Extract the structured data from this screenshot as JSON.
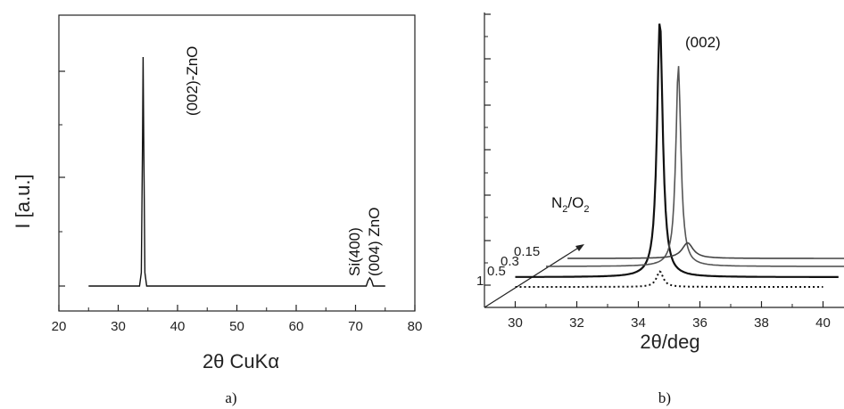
{
  "chart_data": [
    {
      "type": "line",
      "panel_label": "a)",
      "xlabel": "2θ CuKα",
      "ylabel": "I [a.u.]",
      "xlim": [
        20,
        80
      ],
      "xticks": [
        20,
        30,
        40,
        50,
        60,
        70,
        80
      ],
      "ylim": [
        0,
        1
      ],
      "grid": false,
      "annotations": [
        {
          "text": "(002)-ZnO",
          "x": 43,
          "y": 1.06
        },
        {
          "text": "Si(400)",
          "x": 70.5,
          "y": 0.24
        },
        {
          "text": "(004) ZnO",
          "x": 72.8,
          "y": 0.24
        }
      ],
      "series": [
        {
          "x": [
            25,
            33.6,
            33.9,
            34.1,
            34.2,
            34.3,
            34.5,
            34.8,
            69,
            71.8,
            72.1,
            72.4,
            72.7,
            73,
            75
          ],
          "y": [
            0.0,
            0.0,
            0.05,
            0.55,
            0.85,
            0.55,
            0.05,
            0.0,
            0.0,
            0.0,
            0.02,
            0.03,
            0.02,
            0.0,
            0.0
          ]
        }
      ]
    },
    {
      "type": "line",
      "panel_label": "b)",
      "xlabel": "2θ/deg",
      "ylabel": "",
      "xlim": [
        29,
        41
      ],
      "xticks": [
        30,
        32,
        34,
        36,
        38,
        40
      ],
      "grid": false,
      "depth_axis": {
        "label": "N2/O2",
        "label_main": "N",
        "label_sub1": "2",
        "label_mid": "/O",
        "label_sub2": "2",
        "ticks": [
          "1",
          "0.5",
          "0.3",
          "0.15"
        ]
      },
      "annotations": [
        {
          "text": "(002)",
          "x": 36.5
        }
      ],
      "series": [
        {
          "name": "1",
          "style": "dotted",
          "peak_x": 34.7,
          "peak_y": 0.06,
          "x_range": [
            30,
            40
          ]
        },
        {
          "name": "0.5",
          "style": "solid",
          "peak_x": 34.7,
          "peak_y": 1.0,
          "x_range": [
            30,
            40.5
          ]
        },
        {
          "name": "0.3",
          "style": "solid",
          "peak_x": 35.3,
          "peak_y": 0.78,
          "x_range": [
            31,
            41
          ]
        },
        {
          "name": "0.15",
          "style": "solid",
          "peak_x": 35.6,
          "peak_y": 0.06,
          "x_range": [
            31.7,
            41
          ]
        }
      ]
    }
  ]
}
